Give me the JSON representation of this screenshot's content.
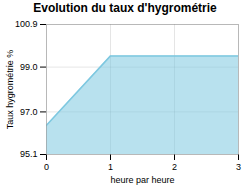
{
  "chart_data": {
    "type": "area",
    "title": "Evolution du taux d'hygrométrie",
    "xlabel": "heure par heure",
    "ylabel": "Taux hygrométrie %",
    "x": [
      0,
      1,
      2,
      3
    ],
    "values": [
      96.4,
      99.5,
      99.5,
      99.5
    ],
    "color": "#7ec8e0",
    "xlim": [
      0,
      3
    ],
    "ylim": [
      95.1,
      100.9
    ],
    "xticks": [
      0,
      1,
      2,
      3
    ],
    "yticks": [
      95.1,
      {
        "value": 97.0,
        "label": "97.0"
      },
      {
        "value": 99.0,
        "label": "99.0"
      },
      100.9
    ],
    "grid": true
  }
}
